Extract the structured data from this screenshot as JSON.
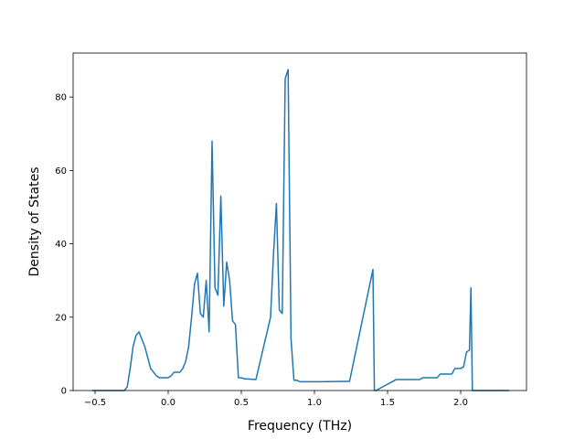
{
  "chart_data": {
    "type": "line",
    "title": "",
    "xlabel": "Frequency (THz)",
    "ylabel": "Density of States",
    "xlim": [
      -0.65,
      2.45
    ],
    "ylim": [
      0,
      92
    ],
    "xticks": [
      -0.5,
      0.0,
      0.5,
      1.0,
      1.5,
      2.0
    ],
    "xtick_labels": [
      "−0.5",
      "0.0",
      "0.5",
      "1.0",
      "1.5",
      "2.0"
    ],
    "yticks": [
      0,
      20,
      40,
      60,
      80
    ],
    "ytick_labels": [
      "0",
      "20",
      "40",
      "60",
      "80"
    ],
    "grid": false,
    "series": [
      {
        "color": "#1f77b4",
        "x": [
          -0.52,
          -0.3,
          -0.28,
          -0.26,
          -0.24,
          -0.22,
          -0.2,
          -0.18,
          -0.16,
          -0.14,
          -0.12,
          -0.1,
          -0.08,
          -0.06,
          -0.04,
          -0.02,
          0.0,
          0.02,
          0.04,
          0.06,
          0.08,
          0.1,
          0.12,
          0.14,
          0.16,
          0.18,
          0.2,
          0.22,
          0.24,
          0.26,
          0.28,
          0.3,
          0.32,
          0.34,
          0.36,
          0.38,
          0.4,
          0.42,
          0.44,
          0.46,
          0.48,
          0.5,
          0.52,
          0.6,
          0.7,
          0.72,
          0.74,
          0.76,
          0.78,
          0.8,
          0.82,
          0.84,
          0.86,
          0.87,
          0.88,
          0.9,
          1.0,
          1.02,
          1.04,
          1.2,
          1.24,
          1.4,
          1.41,
          1.42,
          1.56,
          1.58,
          1.72,
          1.74,
          1.84,
          1.86,
          1.94,
          1.96,
          2.0,
          2.02,
          2.04,
          2.06,
          2.07,
          2.08,
          2.09,
          2.33
        ],
        "y": [
          0,
          0,
          1,
          6,
          12,
          15,
          16,
          14,
          12,
          9,
          6,
          5,
          4,
          3.5,
          3.5,
          3.5,
          3.5,
          4,
          5,
          5,
          5,
          6,
          8,
          12,
          20,
          29,
          32,
          21,
          20,
          30,
          16,
          68,
          28,
          26,
          53,
          23,
          35,
          30,
          19,
          18,
          3.5,
          3.5,
          3.2,
          3.0,
          20,
          37,
          51,
          22,
          21,
          85,
          87.5,
          14,
          2.8,
          2.8,
          2.8,
          2.4,
          2.4,
          2.4,
          2.4,
          2.5,
          2.5,
          33,
          0,
          0,
          3,
          3,
          3,
          3.5,
          3.5,
          4.5,
          4.5,
          6,
          6,
          6.5,
          10.5,
          11,
          28,
          0,
          0,
          0
        ]
      }
    ]
  }
}
